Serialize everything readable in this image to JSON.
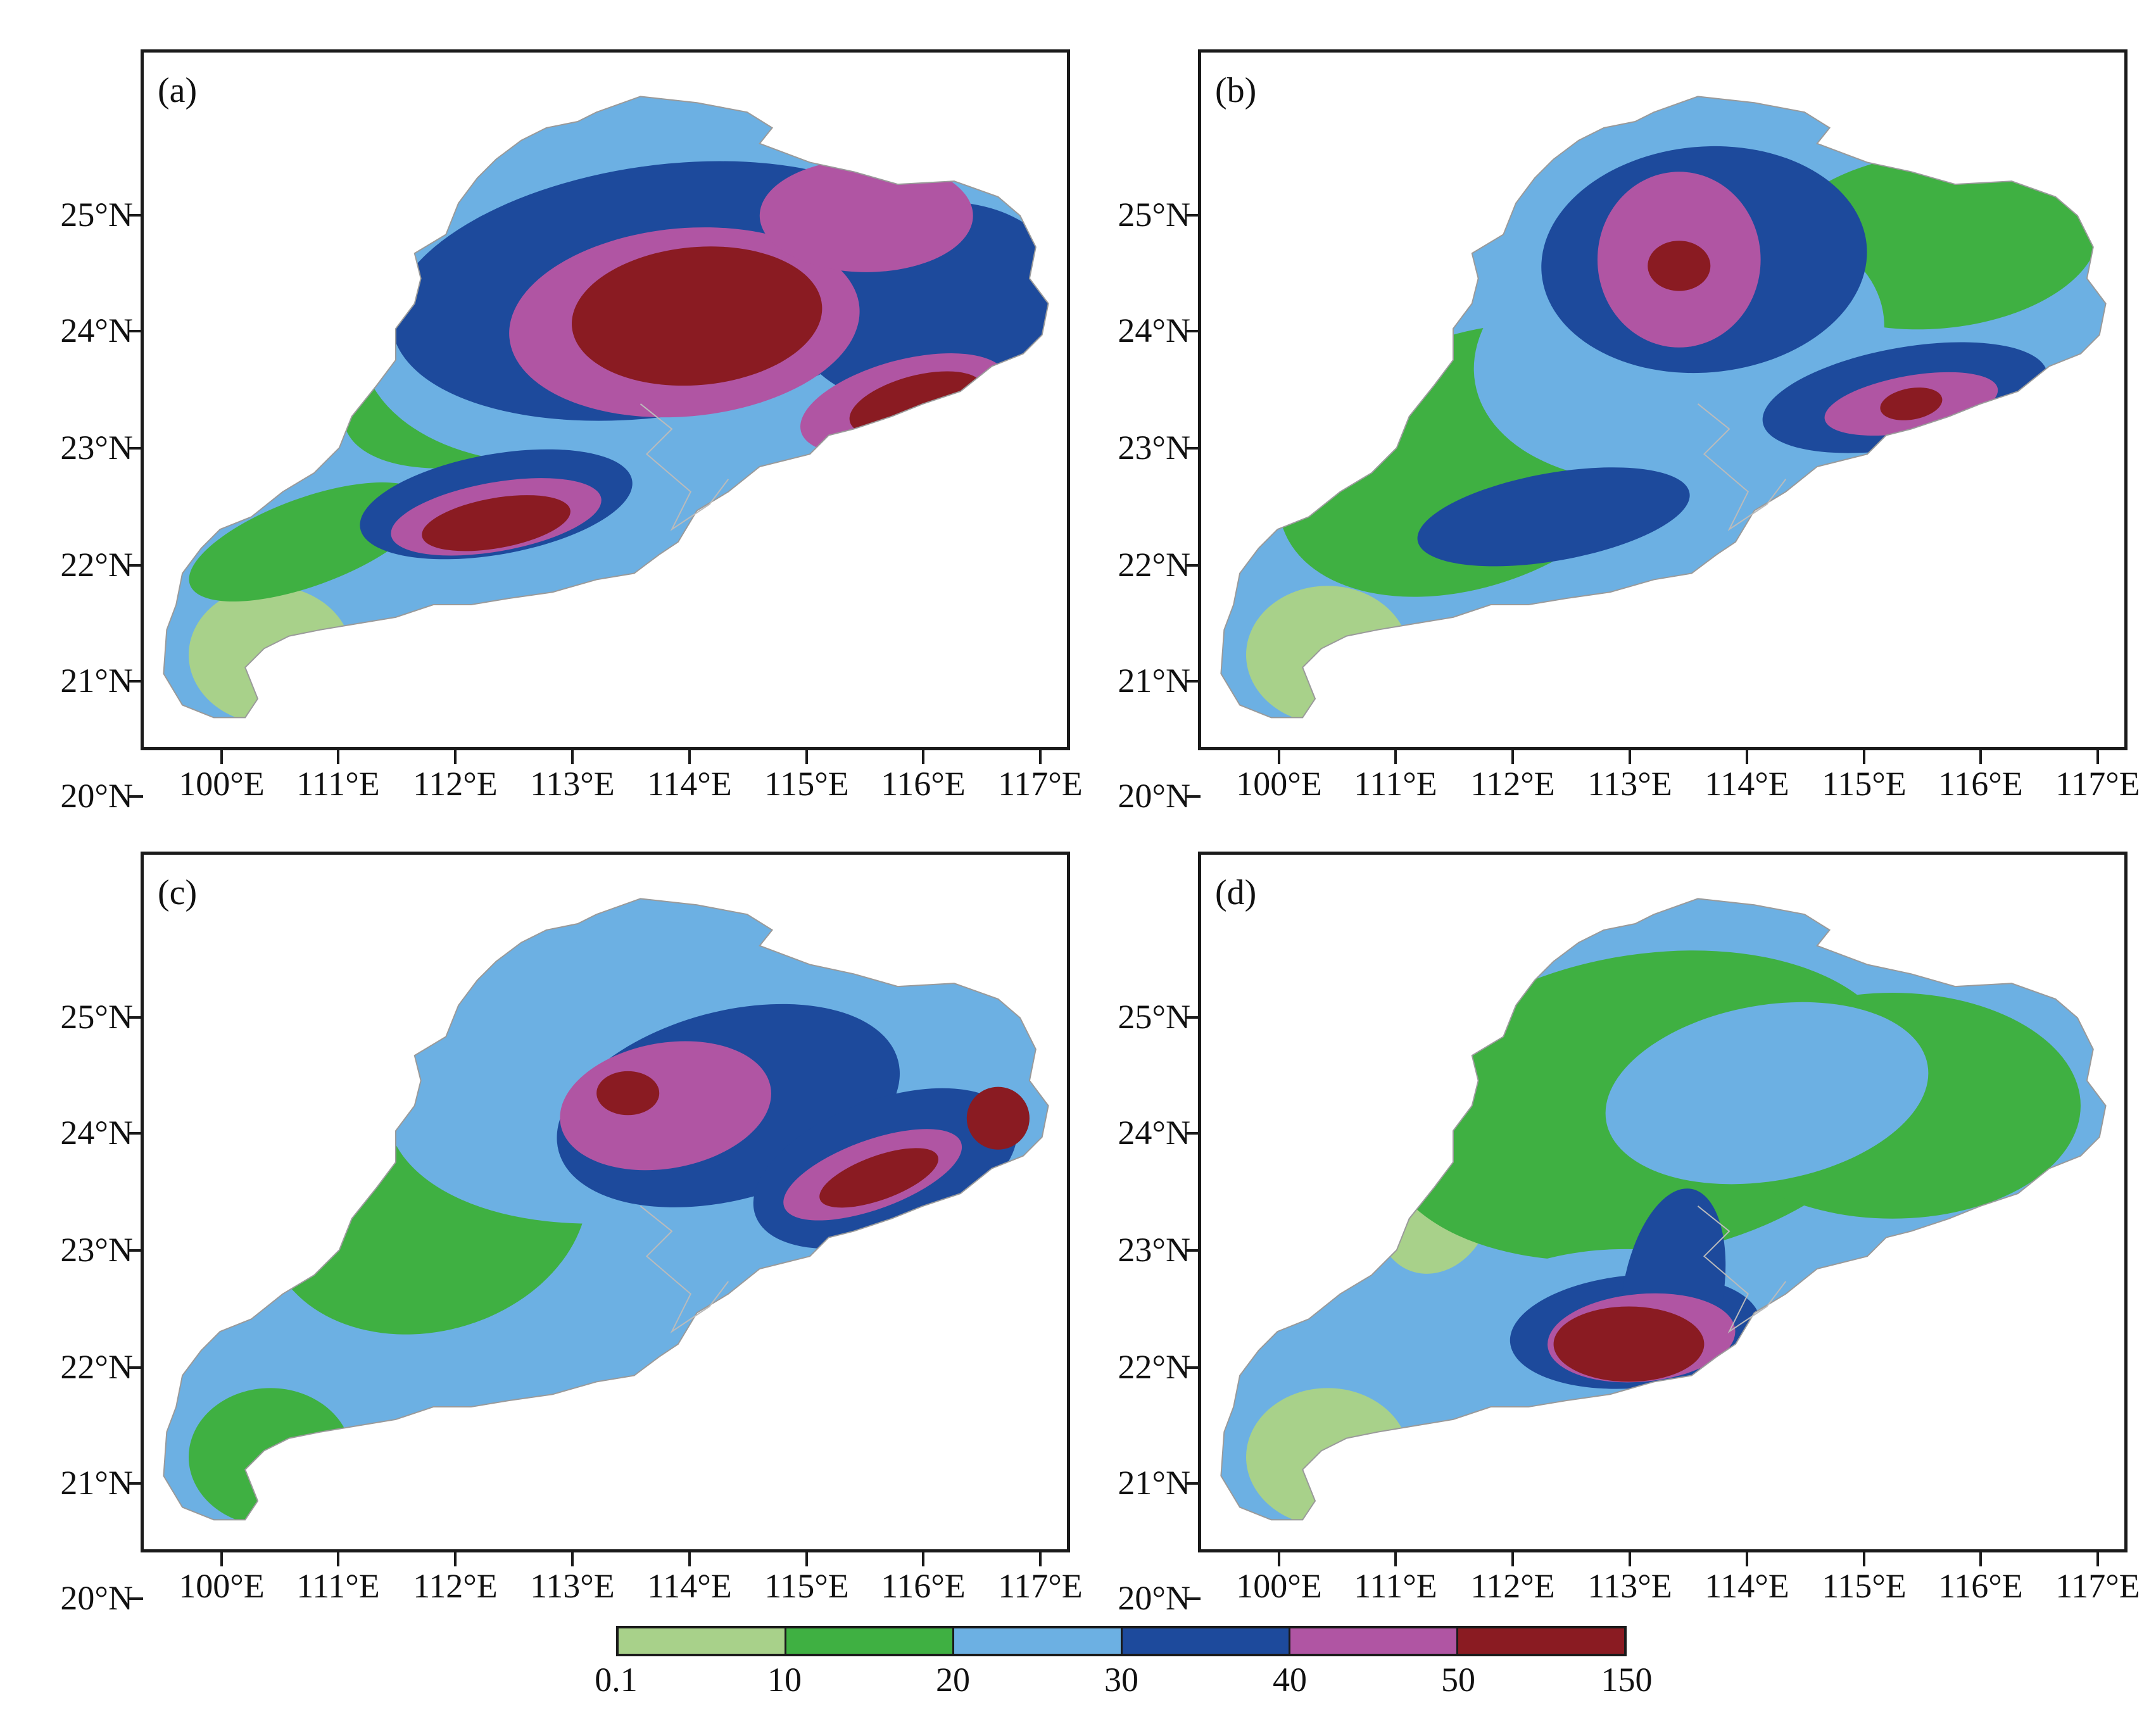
{
  "figure": {
    "panels": [
      {
        "label": "(a)",
        "variant": "a"
      },
      {
        "label": "(b)",
        "variant": "b"
      },
      {
        "label": "(c)",
        "variant": "c"
      },
      {
        "label": "(d)",
        "variant": "d"
      }
    ],
    "lat_ticks": [
      "25°N",
      "24°N",
      "23°N",
      "22°N",
      "21°N",
      "20°N"
    ],
    "lon_ticks": [
      "100°E",
      "111°E",
      "112°E",
      "113°E",
      "114°E",
      "115°E",
      "116°E",
      "117°E"
    ]
  },
  "colorbar": {
    "colors": [
      "#a8d18a",
      "#3fb042",
      "#6cb0e3",
      "#1d4a9c",
      "#b055a3",
      "#8a1b22"
    ],
    "labels": [
      "0.1",
      "10",
      "20",
      "30",
      "40",
      "50",
      "150"
    ]
  }
}
